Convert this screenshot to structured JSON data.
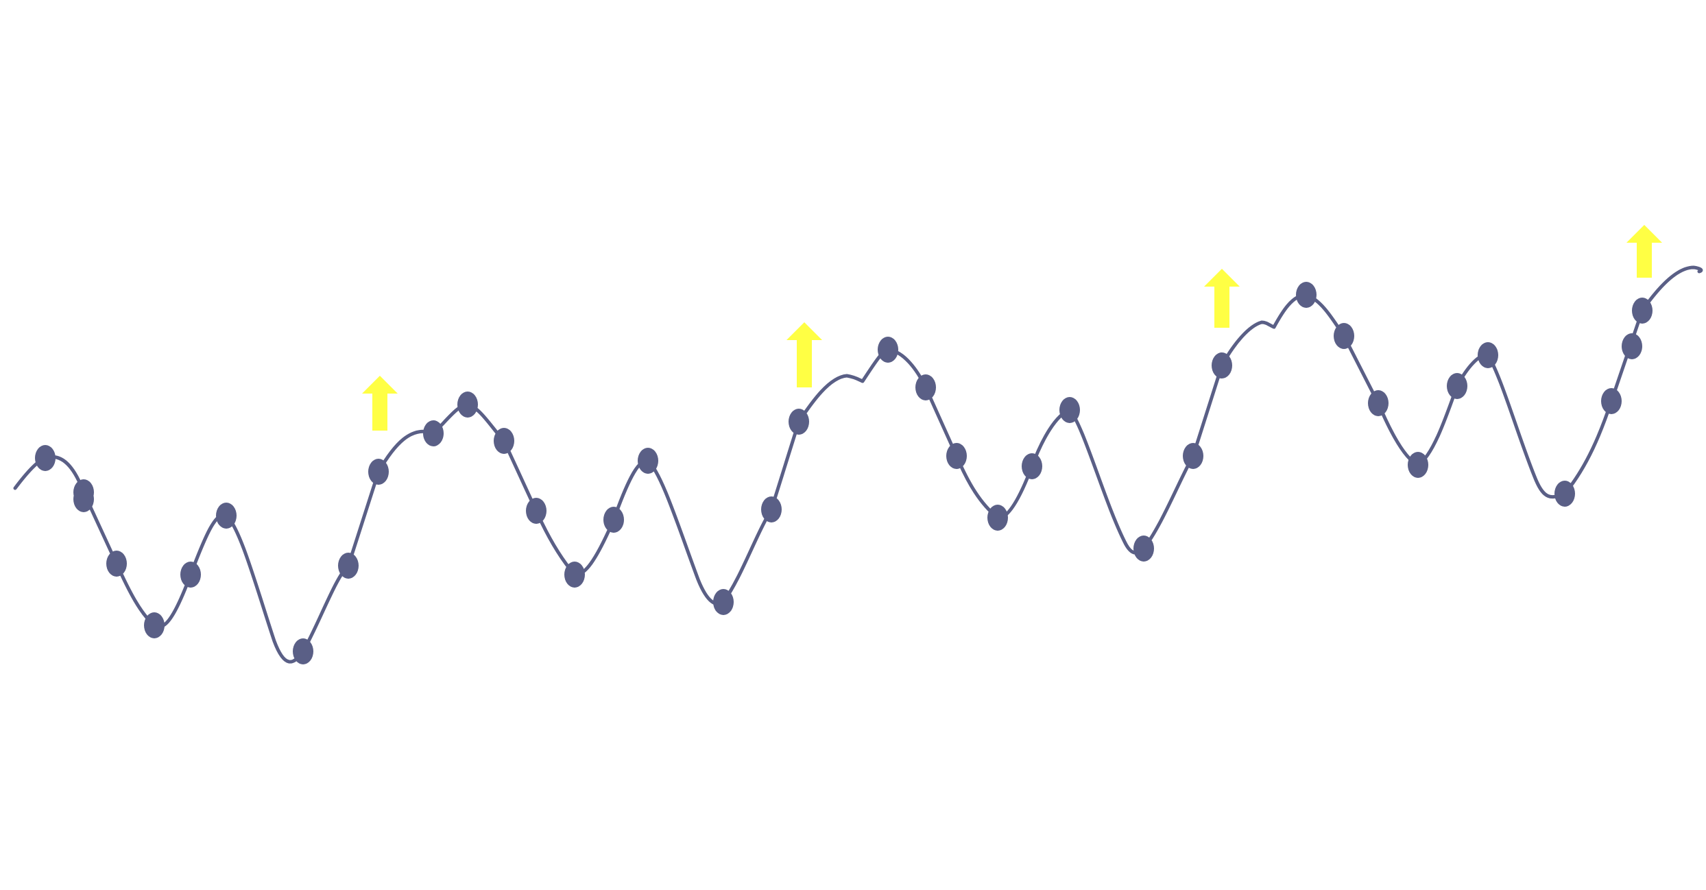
{
  "colors": {
    "background": "#ffffff",
    "curve": "#5a5f86",
    "marker": "#5a5f86",
    "arrow": "#ffff44"
  },
  "chart_data": {
    "type": "line",
    "title": "",
    "xlabel": "",
    "ylabel": "",
    "grid": false,
    "legend": "none",
    "series": [
      {
        "values": [
          0.55,
          0.33,
          0.18,
          0.04,
          0.18,
          0.45,
          0.14,
          0.2,
          0.44,
          0.6,
          0.5,
          0.48,
          0.25,
          0.36,
          0.67,
          0.53,
          0.48,
          0.22,
          0.32,
          0.55,
          0.58,
          0.71,
          0.79,
          0.72,
          0.4,
          0.2,
          0.08,
          0.3,
          0.7,
          0.66,
          0.81,
          0.74,
          0.25,
          0.5,
          0.68,
          0.88,
          0.82,
          0.64,
          0.57,
          0.9,
          1.0,
          0.57,
          0.43,
          0.6,
          0.95,
          0.99,
          0.88
        ]
      }
    ],
    "annotations": [
      {
        "icon": "up-arrow-icon",
        "near_point": 11
      },
      {
        "icon": "up-arrow-icon",
        "near_point": 23
      },
      {
        "icon": "up-arrow-icon",
        "near_point": 35
      },
      {
        "icon": "up-arrow-icon",
        "near_point": 45
      }
    ]
  }
}
